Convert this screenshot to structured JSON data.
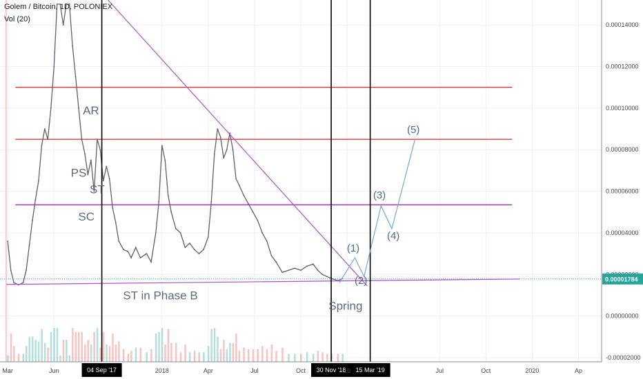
{
  "header": {
    "symbol_line": "Golem / Bitcoin, 1D, POLONIEX",
    "indicator": "Vol (20)"
  },
  "chart_data": {
    "type": "line",
    "price_axis": {
      "ticks": [
        "0.00014000",
        "0.00012000",
        "0.00010000",
        "0.00008000",
        "0.00006000",
        "0.00004000",
        "0.00002000",
        "0.00000000",
        "-0.00002000"
      ],
      "tick_values": [
        0.00014,
        0.00012,
        0.0001,
        8e-05,
        6e-05,
        4e-05,
        2e-05,
        0,
        -2e-05
      ],
      "ylim": [
        -2.2e-05,
        0.000152
      ],
      "current_price": "0.00001784",
      "current_value": 1.784e-05
    },
    "time_axis": {
      "labels": [
        "Mar",
        "Jun",
        "04 Sep '17",
        "2018",
        "Apr",
        "Jul",
        "Oct",
        "30 Nov '18",
        "19",
        "15 Mar '19",
        "Jul",
        "Oct",
        "2020",
        "Ap"
      ],
      "label_months": [
        0,
        3,
        6.1,
        10,
        13,
        16,
        19,
        20.97,
        22,
        23.5,
        28,
        31,
        34,
        37
      ],
      "xlim": [
        -0.5,
        38.5
      ]
    },
    "price_series": [
      [
        0,
        3.6e-05
      ],
      [
        0.2,
        2.2e-05
      ],
      [
        0.4,
        1.6e-05
      ],
      [
        0.7,
        1.5e-05
      ],
      [
        1,
        1.6e-05
      ],
      [
        1.2,
        2.2e-05
      ],
      [
        1.4,
        3.4e-05
      ],
      [
        1.6,
        4.6e-05
      ],
      [
        1.8,
        5.6e-05
      ],
      [
        2,
        6.5e-05
      ],
      [
        2.2,
        8.2e-05
      ],
      [
        2.4,
        9e-05
      ],
      [
        2.6,
        8.5e-05
      ],
      [
        2.8,
        0.0001
      ],
      [
        3,
        0.00012
      ],
      [
        3.2,
        0.00015
      ],
      [
        3.4,
        0.00015
      ],
      [
        3.6,
        0.00014
      ],
      [
        3.8,
        0.00015
      ],
      [
        4,
        0.00015
      ],
      [
        4.2,
        0.00013
      ],
      [
        4.4,
        0.000115
      ],
      [
        4.6,
        0.0001
      ],
      [
        4.8,
        8.5e-05
      ],
      [
        5,
        7.8e-05
      ],
      [
        5.2,
        6.8e-05
      ],
      [
        5.4,
        7.5e-05
      ],
      [
        5.6,
        6e-05
      ],
      [
        5.8,
        8.5e-05
      ],
      [
        6,
        8e-05
      ],
      [
        6.2,
        6.5e-05
      ],
      [
        6.4,
        7.2e-05
      ],
      [
        6.6,
        6.6e-05
      ],
      [
        6.8,
        5.2e-05
      ],
      [
        7,
        4.5e-05
      ],
      [
        7.2,
        3.6e-05
      ],
      [
        7.5,
        3.2e-05
      ],
      [
        7.8,
        3.1e-05
      ],
      [
        8,
        2.8e-05
      ],
      [
        8.3,
        3.3e-05
      ],
      [
        8.6,
        2.8e-05
      ],
      [
        9,
        3e-05
      ],
      [
        9.3,
        2.6e-05
      ],
      [
        9.6,
        4e-05
      ],
      [
        9.8,
        5.5e-05
      ],
      [
        10,
        8.2e-05
      ],
      [
        10.2,
        7.5e-05
      ],
      [
        10.4,
        5.8e-05
      ],
      [
        10.6,
        5e-05
      ],
      [
        10.9,
        4.2e-05
      ],
      [
        11.2,
        4e-05
      ],
      [
        11.5,
        3.3e-05
      ],
      [
        11.8,
        3.5e-05
      ],
      [
        12.1,
        3.2e-05
      ],
      [
        12.4,
        3e-05
      ],
      [
        12.7,
        3.2e-05
      ],
      [
        13,
        3.8e-05
      ],
      [
        13.2,
        5.5e-05
      ],
      [
        13.4,
        7.8e-05
      ],
      [
        13.6,
        9e-05
      ],
      [
        13.8,
        8.6e-05
      ],
      [
        14,
        7.6e-05
      ],
      [
        14.2,
        8e-05
      ],
      [
        14.4,
        8.8e-05
      ],
      [
        14.6,
        8e-05
      ],
      [
        14.8,
        6.6e-05
      ],
      [
        15,
        6.3e-05
      ],
      [
        15.3,
        5.8e-05
      ],
      [
        15.6,
        5.4e-05
      ],
      [
        15.9,
        5e-05
      ],
      [
        16.2,
        4.6e-05
      ],
      [
        16.5,
        4e-05
      ],
      [
        16.8,
        3.6e-05
      ],
      [
        17.1,
        2.9e-05
      ],
      [
        17.4,
        2.6e-05
      ],
      [
        17.8,
        2.1e-05
      ],
      [
        18.2,
        2.2e-05
      ],
      [
        18.6,
        2.3e-05
      ],
      [
        19,
        2.2e-05
      ],
      [
        19.4,
        2.4e-05
      ],
      [
        19.8,
        2.5e-05
      ],
      [
        20.1,
        2.2e-05
      ],
      [
        20.4,
        2e-05
      ],
      [
        20.7,
        1.9e-05
      ],
      [
        21,
        1.8e-05
      ],
      [
        21.4,
        1.7e-05
      ],
      [
        21.7,
        1.8e-05
      ]
    ],
    "levels": [
      {
        "kind": "resistance",
        "value": 0.00011,
        "from": 0.5,
        "to": 32.7
      },
      {
        "kind": "resistance",
        "value": 8.5e-05,
        "from": 0.5,
        "to": 32.7
      },
      {
        "kind": "range",
        "value": 5.35e-05,
        "from": 0.5,
        "to": 32.7
      }
    ],
    "trendlines": [
      {
        "kind": "downtrend",
        "points": [
          [
            6.5,
            0.000152
          ],
          [
            23.3,
            1.45e-05
          ]
        ]
      },
      {
        "kind": "support",
        "points": [
          [
            -0.1,
            1.52e-05
          ],
          [
            33.2,
            1.78e-05
          ]
        ]
      }
    ],
    "marked_dates": [
      6.1,
      20.97,
      23.5
    ],
    "projection": {
      "path": [
        [
          21.5,
          1.6e-05
        ],
        [
          22.5,
          2.8e-05
        ],
        [
          23.1,
          1.9e-05
        ],
        [
          24.2,
          5.3e-05
        ],
        [
          24.9,
          4.2e-05
        ],
        [
          26.4,
          8.5e-05
        ]
      ],
      "wave_labels": [
        {
          "text": "(1)",
          "at": [
            22.4,
            3.1e-05
          ]
        },
        {
          "text": "(2)",
          "at": [
            22.9,
            1.55e-05
          ]
        },
        {
          "text": "(3)",
          "at": [
            24.1,
            5.65e-05
          ]
        },
        {
          "text": "(4)",
          "at": [
            25,
            3.7e-05
          ]
        },
        {
          "text": "(5)",
          "at": [
            26.3,
            8.8e-05
          ]
        }
      ]
    },
    "annotations": [
      {
        "text": "AR",
        "at": [
          5.4,
          9.7e-05
        ]
      },
      {
        "text": "PS",
        "at": [
          4.6,
          6.7e-05
        ]
      },
      {
        "text": "ST",
        "at": [
          5.8,
          5.9e-05
        ]
      },
      {
        "text": "SC",
        "at": [
          5.1,
          4.6e-05
        ]
      },
      {
        "text": "ST in Phase B",
        "at": [
          9.9,
          8e-06
        ]
      },
      {
        "text": "Spring",
        "at": [
          21.9,
          3e-06
        ]
      }
    ],
    "colors": {
      "up": "#26a69a",
      "down": "#ef5350",
      "line": "#5d606b",
      "resistance": "#e53935",
      "range": "#9c27b0",
      "trend": "#b04ecf",
      "projection": "#6fa8d6",
      "current_bg": "#26a69a"
    }
  }
}
